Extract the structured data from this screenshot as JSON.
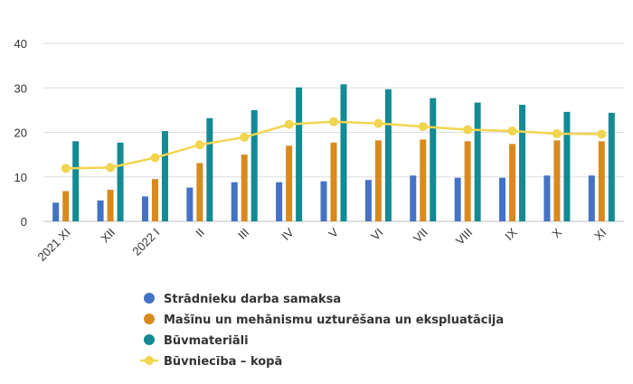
{
  "chart_data": {
    "type": "bar",
    "categories": [
      "2021 XI",
      "XII",
      "2022 I",
      "II",
      "III",
      "IV",
      "V",
      "VI",
      "VII",
      "VIII",
      "IX",
      "X",
      "XI"
    ],
    "ylim": [
      0,
      40
    ],
    "yticks": [
      0,
      10,
      20,
      30,
      40
    ],
    "grid": true,
    "legend_position": "bottom-center",
    "series": [
      {
        "name": "Strādnieku darba samaksa",
        "type": "bar",
        "color": "#4472c4",
        "values": [
          4.2,
          4.7,
          5.6,
          7.6,
          8.8,
          8.8,
          9.0,
          9.3,
          10.3,
          9.8,
          9.8,
          10.3,
          10.3
        ]
      },
      {
        "name": "Mašīnu un mehānismu uzturēšana un ekspluatācija",
        "type": "bar",
        "color": "#d98a1e",
        "values": [
          6.8,
          7.1,
          9.5,
          13.1,
          15.0,
          17.0,
          17.7,
          18.2,
          18.4,
          18.0,
          17.4,
          18.2,
          18.0
        ]
      },
      {
        "name": "Būvmateriāli",
        "type": "bar",
        "color": "#138a94",
        "values": [
          18.0,
          17.7,
          20.3,
          23.2,
          25.0,
          30.1,
          30.8,
          29.7,
          27.7,
          26.7,
          26.2,
          24.6,
          24.4
        ]
      },
      {
        "name": "Būvniecība – kopā",
        "type": "line",
        "color": "#f2d54f",
        "values": [
          11.9,
          12.1,
          14.3,
          17.2,
          18.9,
          21.8,
          22.4,
          22.0,
          21.3,
          20.6,
          20.3,
          19.7,
          19.6
        ]
      }
    ]
  }
}
